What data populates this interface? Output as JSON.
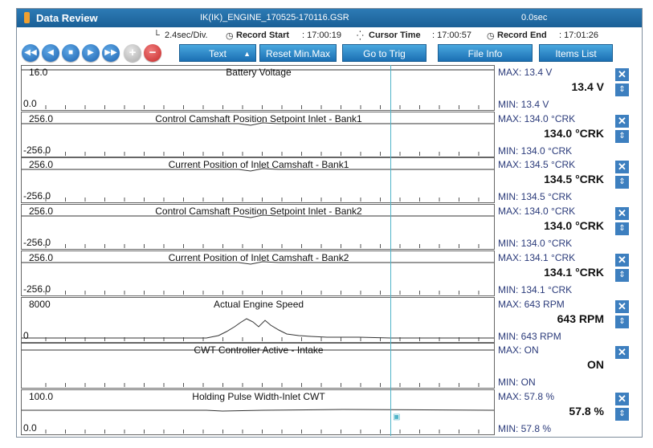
{
  "window": {
    "title": "Data Review",
    "file_name": "IK(IK)_ENGINE_170525-170116.GSR",
    "elapsed": "0.0sec"
  },
  "info": {
    "division": "2.4sec/Div.",
    "record_start_label": "Record Start",
    "record_start": ": 17:00:19",
    "cursor_time_label": "Cursor Time",
    "cursor_time": ": 17:00:57",
    "record_end_label": "Record End",
    "record_end": ":  17:01:26"
  },
  "toolbar": {
    "text_label": "Text",
    "reset_label": "Reset Min.Max",
    "goto_trig_label": "Go to Trig",
    "file_info_label": "File Info",
    "items_list_label": "Items List"
  },
  "icons": [
    "rewind-icon",
    "previous-icon",
    "stop-icon",
    "play-icon",
    "fast-forward-icon",
    "add-icon",
    "remove-icon",
    "close-icon",
    "up-down-icon",
    "cursor-marker-icon"
  ],
  "colors": {
    "accent": "#1d63b0",
    "cursor": "#4fb3c8",
    "value_text": "#2a3a7a"
  },
  "rows": [
    {
      "name": "Battery Voltage",
      "ytop": "16.0",
      "ybot": "0.0",
      "max": "MAX:  13.4 V",
      "value": "13.4 V",
      "min": "MIN:  13.4 V",
      "has_scroll": true
    },
    {
      "name": "Control Camshaft Position Setpoint Inlet - Bank1",
      "ytop": "256.0",
      "ybot": "-256.0",
      "max": "MAX: 134.0 °CRK",
      "value": "134.0 °CRK",
      "min": "MIN: 134.0 °CRK",
      "has_scroll": true
    },
    {
      "name": "Current Position of Inlet Camshaft - Bank1",
      "ytop": "256.0",
      "ybot": "-256.0",
      "max": "MAX: 134.5 °CRK",
      "value": "134.5 °CRK",
      "min": "MIN: 134.5 °CRK",
      "has_scroll": true
    },
    {
      "name": "Control Camshaft Position Setpoint Inlet - Bank2",
      "ytop": "256.0",
      "ybot": "-256.0",
      "max": "MAX: 134.0 °CRK",
      "value": "134.0 °CRK",
      "min": "MIN: 134.0 °CRK",
      "has_scroll": true
    },
    {
      "name": "Current Position of Inlet Camshaft - Bank2",
      "ytop": "256.0",
      "ybot": "-256.0",
      "max": "MAX: 134.1 °CRK",
      "value": "134.1 °CRK",
      "min": "MIN: 134.1 °CRK",
      "has_scroll": true
    },
    {
      "name": "Actual Engine Speed",
      "ytop": "8000",
      "ybot": "0",
      "max": "MAX:    643 RPM",
      "value": "643 RPM",
      "min": "MIN:    643 RPM",
      "has_scroll": true
    },
    {
      "name": "CWT Controller Active - Intake",
      "ytop": "",
      "ybot": "",
      "max": "MAX: ON",
      "value": "ON",
      "min": "MIN: ON",
      "has_scroll": false
    },
    {
      "name": "Holding Pulse Width-Inlet CWT",
      "ytop": "100.0",
      "ybot": "0.0",
      "max": "MAX:  57.8 %",
      "value": "57.8 %",
      "min": "MIN:  57.8 %",
      "has_scroll": true
    }
  ]
}
